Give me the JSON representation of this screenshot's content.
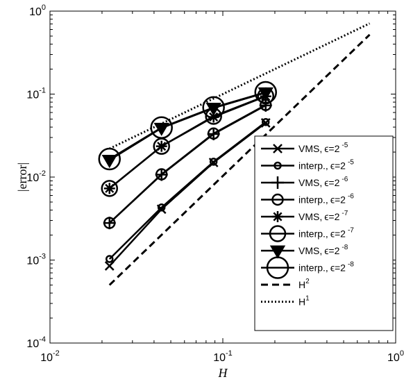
{
  "chart_data": {
    "type": "line",
    "xscale": "log",
    "yscale": "log",
    "xlim": [
      0.01,
      1
    ],
    "ylim": [
      0.0001,
      1
    ],
    "xlabel": "H",
    "ylabel": "|error|",
    "grid": false,
    "legend_position": "bottom-right",
    "xticks": [
      {
        "value": 0.01,
        "base": "10",
        "exp": "-2"
      },
      {
        "value": 0.1,
        "base": "10",
        "exp": "-1"
      },
      {
        "value": 1,
        "base": "10",
        "exp": "0"
      }
    ],
    "yticks": [
      {
        "value": 0.0001,
        "base": "10",
        "exp": "-4"
      },
      {
        "value": 0.001,
        "base": "10",
        "exp": "-3"
      },
      {
        "value": 0.01,
        "base": "10",
        "exp": "-2"
      },
      {
        "value": 0.1,
        "base": "10",
        "exp": "-1"
      },
      {
        "value": 1,
        "base": "10",
        "exp": "0"
      }
    ],
    "series": [
      {
        "name_prefix": "VMS,",
        "name_eps": "ϵ=2",
        "name_exp": "-5",
        "marker": "x",
        "line": "solid",
        "x": [
          0.0221,
          0.0442,
          0.0884,
          0.177
        ],
        "y": [
          0.00085,
          0.0041,
          0.015,
          0.045
        ]
      },
      {
        "name_prefix": "interp.,",
        "name_eps": "ϵ=2",
        "name_exp": "-5",
        "marker": "o-small",
        "line": "solid",
        "x": [
          0.0221,
          0.0442,
          0.0884,
          0.177
        ],
        "y": [
          0.00103,
          0.0043,
          0.0153,
          0.046
        ]
      },
      {
        "name_prefix": "VMS,",
        "name_eps": "ϵ=2",
        "name_exp": "-6",
        "marker": "plus",
        "line": "solid",
        "x": [
          0.0221,
          0.0442,
          0.0884,
          0.177
        ],
        "y": [
          0.0028,
          0.0107,
          0.033,
          0.073
        ]
      },
      {
        "name_prefix": "interp.,",
        "name_eps": "ϵ=2",
        "name_exp": "-6",
        "marker": "o-medium",
        "line": "solid",
        "x": [
          0.0221,
          0.0442,
          0.0884,
          0.177
        ],
        "y": [
          0.0028,
          0.0108,
          0.0335,
          0.074
        ]
      },
      {
        "name_prefix": "VMS,",
        "name_eps": "ϵ=2",
        "name_exp": "-7",
        "marker": "asterisk",
        "line": "solid",
        "x": [
          0.0221,
          0.0442,
          0.0884,
          0.177
        ],
        "y": [
          0.0073,
          0.0235,
          0.053,
          0.094
        ]
      },
      {
        "name_prefix": "interp.,",
        "name_eps": "ϵ=2",
        "name_exp": "-7",
        "marker": "o-large",
        "line": "solid",
        "x": [
          0.0221,
          0.0442,
          0.0884,
          0.177
        ],
        "y": [
          0.0073,
          0.0235,
          0.054,
          0.095
        ]
      },
      {
        "name_prefix": "VMS,",
        "name_eps": "ϵ=2",
        "name_exp": "-8",
        "marker": "triangle-down",
        "line": "solid",
        "x": [
          0.0221,
          0.0442,
          0.0884,
          0.177
        ],
        "y": [
          0.016,
          0.039,
          0.068,
          0.104
        ]
      },
      {
        "name_prefix": "interp.,",
        "name_eps": "ϵ=2",
        "name_exp": "-8",
        "marker": "o-xlarge",
        "line": "solid",
        "x": [
          0.0221,
          0.0442,
          0.0884,
          0.177
        ],
        "y": [
          0.0165,
          0.0395,
          0.069,
          0.105
        ]
      },
      {
        "name_prefix": "H",
        "name_eps": "",
        "name_exp": "2",
        "marker": "none",
        "line": "dashed",
        "x": [
          0.0221,
          0.707
        ],
        "y": [
          0.0005,
          0.52
        ]
      },
      {
        "name_prefix": "H",
        "name_eps": "",
        "name_exp": "1",
        "marker": "none",
        "line": "dotted",
        "x": [
          0.0221,
          0.707
        ],
        "y": [
          0.022,
          0.71
        ]
      }
    ]
  }
}
